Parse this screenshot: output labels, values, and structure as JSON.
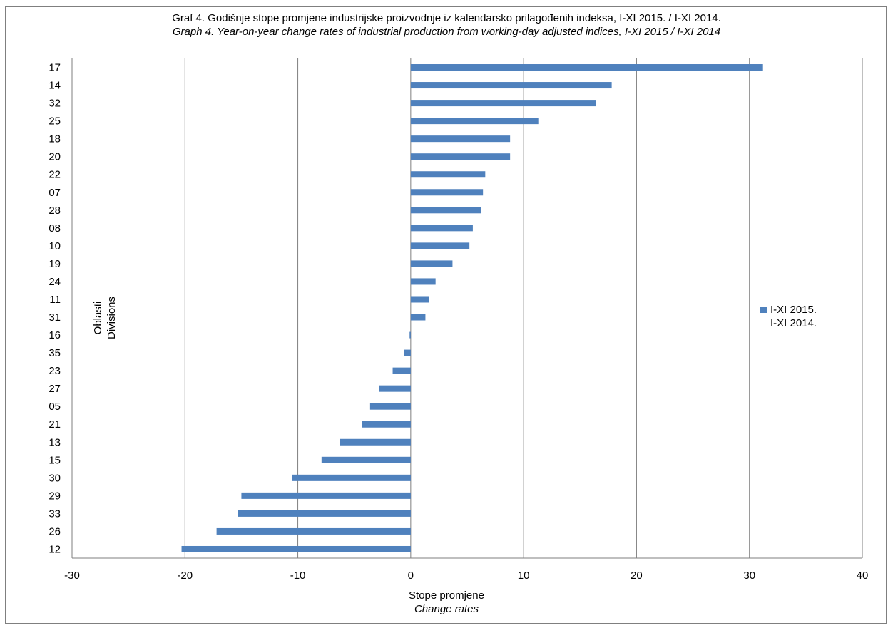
{
  "title": {
    "line1": "Graf 4. Godišnje stope  promjene industrijske proizvodnje iz kalendarsko prilagođenih indeksa, I-XI 2015. / I-XI 2014.",
    "line2": "Graph 4. Year-on-year change rates of industrial production from working-day adjusted indices, I-XI 2015 / I-XI 2014"
  },
  "axes": {
    "x_title_hr": "Stope promjene",
    "x_title_en": "Change rates",
    "y_title_hr": "Oblasti",
    "y_title_en": "Divisions"
  },
  "legend": {
    "line1": "I-XI 2015.",
    "line2": "I-XI 2014."
  },
  "colors": {
    "bar": "#4f81bd",
    "grid": "#7f7f7f",
    "frame": "#7f7f7f"
  },
  "chart_data": {
    "type": "bar",
    "orientation": "horizontal",
    "title": "Graf 4. Godišnje stope  promjene industrijske proizvodnje iz kalendarsko prilagođenih indeksa, I-XI 2015. / I-XI 2014.",
    "xlabel": "Stope promjene / Change rates",
    "ylabel": "Oblasti / Divisions",
    "xlim": [
      -30,
      40
    ],
    "x_ticks": [
      "-30",
      "-20",
      "-10",
      "0",
      "10",
      "20",
      "30",
      "40"
    ],
    "grid": "vertical",
    "legend_position": "right",
    "categories": [
      "17",
      "14",
      "32",
      "25",
      "18",
      "20",
      "22",
      "07",
      "28",
      "08",
      "10",
      "19",
      "24",
      "11",
      "31",
      "16",
      "35",
      "23",
      "27",
      "05",
      "21",
      "13",
      "15",
      "30",
      "29",
      "33",
      "26",
      "12"
    ],
    "series": [
      {
        "name": "I-XI 2015. I-XI 2014.",
        "values": [
          31.2,
          17.8,
          16.4,
          11.3,
          8.8,
          8.8,
          6.6,
          6.4,
          6.2,
          5.5,
          5.2,
          3.7,
          2.2,
          1.6,
          1.3,
          -0.1,
          -0.6,
          -1.6,
          -2.8,
          -3.6,
          -4.3,
          -6.3,
          -7.9,
          -10.5,
          -15.0,
          -15.3,
          -17.2,
          -20.3
        ]
      }
    ]
  }
}
